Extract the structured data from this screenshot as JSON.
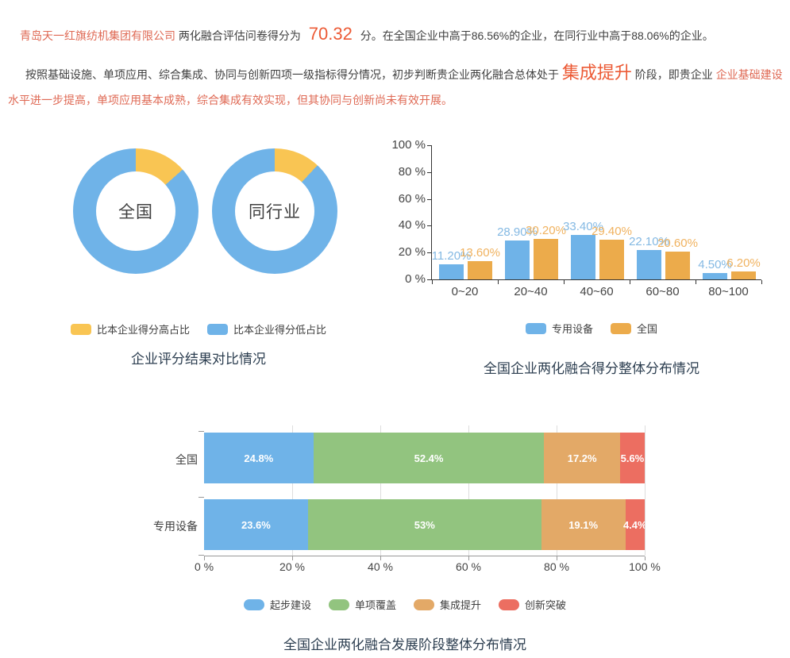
{
  "summary": {
    "p1": {
      "company": "青岛天一红旗纺机集团有限公司",
      "mid": "两化融合评估问卷得分为",
      "score": "70.32",
      "after": "分。在全国企业中高于86.56%的企业，在同行业中高于88.06%的企业。"
    },
    "p2": {
      "lead": "按照基础设施、单项应用、综合集成、协同与创新四项一级指标得分情况，初步判断贵企业两化融合总体处于",
      "stage": "集成提升",
      "mid": "阶段，即贵企业",
      "tail": "企业基础建设水平进一步提高，单项应用基本成熟，综合集成有效实现，但其协同与创新尚未有效开展。"
    }
  },
  "colors": {
    "blue": "#6fb3e8",
    "yellow": "#f9c553",
    "bar_orange": "#ecab4b",
    "green": "#92c47f",
    "tan": "#e3a967",
    "red": "#ec6e61",
    "blue_label": "#84b9e3",
    "orange_label": "#f0b25f",
    "highlight": "#ec5a35",
    "company_red": "#df6954",
    "title": "#2c3e50"
  },
  "chart_data": [
    {
      "id": "donut-compare",
      "type": "pie",
      "title": "企业评分结果对比情况",
      "legend": [
        {
          "label": "比本企业得分高占比",
          "color_key": "yellow"
        },
        {
          "label": "比本企业得分低占比",
          "color_key": "blue"
        }
      ],
      "donuts": [
        {
          "label": "全国",
          "higher_pct": 13.44,
          "lower_pct": 86.56
        },
        {
          "label": "同行业",
          "higher_pct": 11.94,
          "lower_pct": 88.06
        }
      ]
    },
    {
      "id": "score-distribution",
      "type": "bar",
      "title": "全国企业两化融合得分整体分布情况",
      "categories": [
        "0~20",
        "20~40",
        "40~60",
        "60~80",
        "80~100"
      ],
      "series": [
        {
          "name": "专用设备",
          "color_key": "blue",
          "label_color_key": "blue_label",
          "values": [
            11.2,
            28.9,
            33.4,
            22.1,
            4.5
          ],
          "labels": [
            "11.20%",
            "28.90%",
            "33.40%",
            "22.10%",
            "4.50%"
          ]
        },
        {
          "name": "全国",
          "color_key": "bar_orange",
          "label_color_key": "orange_label",
          "values": [
            13.6,
            30.2,
            29.4,
            20.6,
            6.2
          ],
          "labels": [
            "13.60%",
            "30.20%",
            "29.40%",
            "20.60%",
            "6.20%"
          ]
        }
      ],
      "ylim": [
        0,
        100
      ],
      "yticks": [
        {
          "value": 100,
          "label": "100 %"
        },
        {
          "value": 80,
          "label": "80 %"
        },
        {
          "value": 60,
          "label": "60 %"
        },
        {
          "value": 40,
          "label": "40 %"
        },
        {
          "value": 20,
          "label": "20 %"
        },
        {
          "value": 0,
          "label": "0 %"
        }
      ],
      "grid": false,
      "legend_position": "bottom"
    },
    {
      "id": "stage-distribution",
      "type": "stacked_bar_horizontal",
      "title": "全国企业两化融合发展阶段整体分布情况",
      "categories": [
        "全国",
        "专用设备"
      ],
      "series": [
        {
          "name": "起步建设",
          "color_key": "blue",
          "values": [
            24.8,
            23.6
          ],
          "labels": [
            "24.8%",
            "23.6%"
          ]
        },
        {
          "name": "单项覆盖",
          "color_key": "green",
          "values": [
            52.4,
            53
          ],
          "labels": [
            "52.4%",
            "53%"
          ]
        },
        {
          "name": "集成提升",
          "color_key": "tan",
          "values": [
            17.2,
            19.1
          ],
          "labels": [
            "17.2%",
            "19.1%"
          ]
        },
        {
          "name": "创新突破",
          "color_key": "red",
          "values": [
            5.6,
            4.4
          ],
          "labels": [
            "5.6%",
            "4.4%"
          ]
        }
      ],
      "xlim": [
        0,
        100
      ],
      "xticks": [
        {
          "value": 0,
          "label": "0 %"
        },
        {
          "value": 20,
          "label": "20 %"
        },
        {
          "value": 40,
          "label": "40 %"
        },
        {
          "value": 60,
          "label": "60 %"
        },
        {
          "value": 80,
          "label": "80 %"
        },
        {
          "value": 100,
          "label": "100 %"
        }
      ],
      "grid": true,
      "legend_position": "bottom"
    }
  ]
}
